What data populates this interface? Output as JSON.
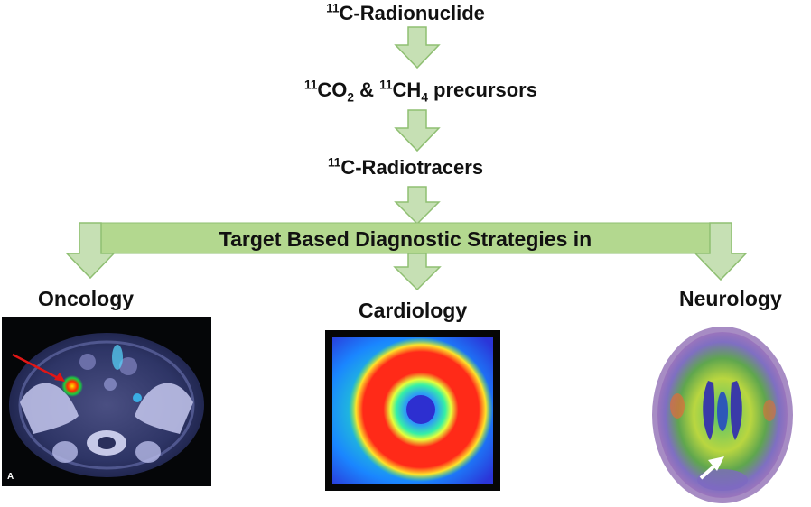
{
  "flow": {
    "step1": {
      "iso": "11",
      "name": "C-Radionuclide"
    },
    "step2": {
      "iso_a": "11",
      "mol_a": "CO",
      "sub_a": "2",
      "amp": "&",
      "iso_b": "11",
      "mol_b": "CH",
      "sub_b": "4",
      "tail": "precursors"
    },
    "step3": {
      "iso": "11",
      "name": "C-Radiotracers"
    }
  },
  "bar": {
    "label": "Target Based Diagnostic Strategies in"
  },
  "fields": {
    "oncology": "Oncology",
    "cardiology": "Cardiology",
    "neurology": "Neurology"
  },
  "images": {
    "oncology_panel_letter": "A"
  },
  "colors": {
    "arrow_fill": "#c6e0b4",
    "arrow_stroke": "#8fbf72",
    "bar_fill": "#b3d88f"
  },
  "icons": {
    "oncology_marker": "red-arrow-icon",
    "neurology_marker": "white-arrow-icon"
  }
}
